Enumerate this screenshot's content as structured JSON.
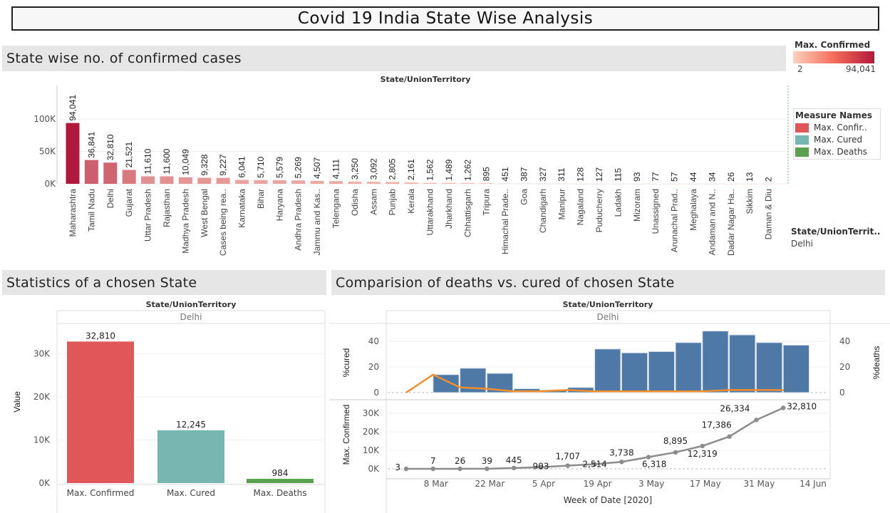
{
  "title": "Covid 19 India State Wise Analysis",
  "sections": {
    "top": "State wise no. of confirmed cases",
    "bottom_left": "Statistics of a chosen State",
    "bottom_right": "Comparision of deaths vs. cured of chosen State"
  },
  "color_legend": {
    "title": "Max. Confirmed",
    "min": "2",
    "max": "94,041",
    "min_color": "#fcd2c0",
    "max_color": "#b2183b"
  },
  "measure_legend": {
    "title": "Measure Names",
    "items": [
      {
        "label": "Max. Confir..",
        "color": "#e15759"
      },
      {
        "label": "Max. Cured",
        "color": "#76b7b2"
      },
      {
        "label": "Max. Deaths",
        "color": "#59a14f"
      }
    ]
  },
  "state_filter": {
    "title": "State/UnionTerrit..",
    "value": "Delhi"
  },
  "chart_data": [
    {
      "type": "bar",
      "title": "",
      "header": "State/UnionTerritory",
      "ylabel": "Max. Confirmed",
      "ylim": [
        0,
        130000
      ],
      "yticks": [
        "0K",
        "50K",
        "100K"
      ],
      "categories": [
        "Maharashtra",
        "Tamil Nadu",
        "Delhi",
        "Gujarat",
        "Uttar Pradesh",
        "Rajasthan",
        "Madhya Pradesh",
        "West Bengal",
        "Cases being rea..",
        "Karnataka",
        "Bihar",
        "Haryana",
        "Andhra Pradesh",
        "Jammu and Kas..",
        "Telengana",
        "Odisha",
        "Assam",
        "Punjab",
        "Kerala",
        "Uttarakhand",
        "Jharkhand",
        "Chhattisgarh",
        "Tripura",
        "Himachal Prade..",
        "Goa",
        "Chandigarh",
        "Manipur",
        "Nagaland",
        "Puducherry",
        "Ladakh",
        "Mizoram",
        "Unassigned",
        "Arunachal Prad..",
        "Meghalaya",
        "Andaman and N..",
        "Dadar Nagar Ha..",
        "Sikkim",
        "Daman & Diu"
      ],
      "values": [
        94041,
        36841,
        32810,
        21521,
        11610,
        11600,
        10049,
        9328,
        9227,
        6041,
        5710,
        5579,
        5269,
        4507,
        4111,
        3250,
        3092,
        2805,
        2161,
        1562,
        1489,
        1262,
        895,
        451,
        387,
        327,
        311,
        128,
        127,
        115,
        93,
        77,
        57,
        44,
        34,
        26,
        13,
        2
      ],
      "value_labels": [
        "94,041",
        "36,841",
        "32,810",
        "21,521",
        "11,610",
        "11,600",
        "10,049",
        "9,328",
        "9,227",
        "6,041",
        "5,710",
        "5,579",
        "5,269",
        "4,507",
        "4,111",
        "3,250",
        "3,092",
        "2,805",
        "2,161",
        "1,562",
        "1,489",
        "1,262",
        "895",
        "451",
        "387",
        "327",
        "311",
        "128",
        "127",
        "115",
        "93",
        "77",
        "57",
        "44",
        "34",
        "26",
        "13",
        "2"
      ]
    },
    {
      "type": "bar",
      "title": "",
      "header": "State/UnionTerritory",
      "subheader": "Delhi",
      "ylabel": "Value",
      "ylim": [
        0,
        37000
      ],
      "yticks": [
        "0K",
        "10K",
        "20K",
        "30K"
      ],
      "categories": [
        "Max. Confirmed",
        "Max. Cured",
        "Max. Deaths"
      ],
      "values": [
        32810,
        12245,
        984
      ],
      "value_labels": [
        "32,810",
        "12,245",
        "984"
      ],
      "colors": [
        "#e15759",
        "#76b7b2",
        "#59a14f"
      ]
    },
    {
      "type": "bar",
      "title": "",
      "header": "State/UnionTerritory",
      "subheader": "Delhi",
      "ylabel": "%cured",
      "y2label": "%deaths",
      "ylim": [
        0,
        50
      ],
      "yticks": [
        "0",
        "20",
        "40"
      ],
      "x": [
        "1 Mar",
        "8 Mar",
        "15 Mar",
        "22 Mar",
        "29 Mar",
        "5 Apr",
        "12 Apr",
        "19 Apr",
        "26 Apr",
        "3 May",
        "10 May",
        "17 May",
        "24 May",
        "31 May",
        "7 Jun"
      ],
      "series": [
        {
          "values": [
            null,
            14,
            19,
            15,
            3,
            2,
            4,
            34,
            31,
            32,
            39,
            48,
            45,
            39,
            37
          ]
        },
        {
          "values": [
            0,
            14,
            4,
            3,
            1,
            1,
            2,
            1,
            1,
            1,
            1,
            1,
            2,
            2,
            2
          ]
        }
      ]
    },
    {
      "type": "line",
      "title": "",
      "ylabel": "Max. Confirmed",
      "xlabel": "Week of Date [2020]",
      "ylim": [
        0,
        33000
      ],
      "yticks": [
        "0K",
        "10K",
        "20K",
        "30K"
      ],
      "xticks": [
        "8 Mar",
        "22 Mar",
        "5 Apr",
        "19 Apr",
        "3 May",
        "17 May",
        "31 May",
        "14 Jun"
      ],
      "x": [
        "1 Mar",
        "8 Mar",
        "15 Mar",
        "22 Mar",
        "29 Mar",
        "5 Apr",
        "12 Apr",
        "19 Apr",
        "26 Apr",
        "3 May",
        "10 May",
        "17 May",
        "24 May",
        "31 May",
        "7 Jun"
      ],
      "values": [
        3,
        7,
        26,
        39,
        445,
        903,
        1707,
        2514,
        3738,
        6318,
        8895,
        12319,
        17386,
        26334,
        32810
      ],
      "value_labels": [
        "3",
        "7",
        "26",
        "39",
        "445",
        "903",
        "1,707",
        "2,514",
        "3,738",
        "6,318",
        "8,895",
        "12,319",
        "17,386",
        "26,334",
        "32,810"
      ]
    }
  ]
}
